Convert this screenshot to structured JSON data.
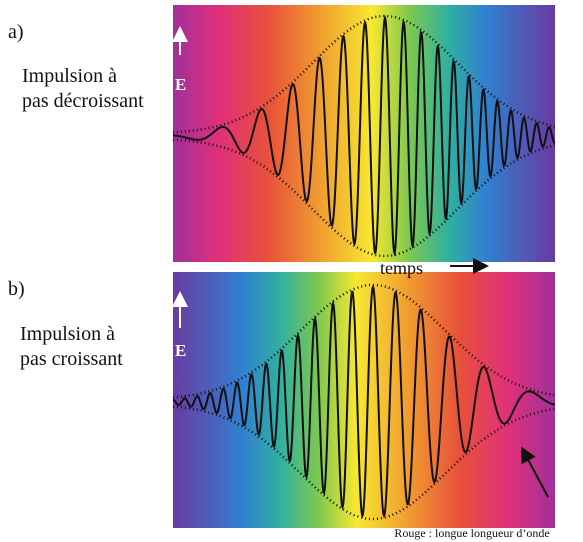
{
  "panels": [
    {
      "letter": "a)",
      "caption": [
        "Impulsion à",
        "pas décroissant"
      ],
      "axis_label": "E"
    },
    {
      "letter": "b)",
      "caption": [
        "Impulsion à",
        "pas croissant"
      ],
      "axis_label": "E"
    }
  ],
  "time_label": "temps",
  "annotation": "Rouge : longue longueur d’onde"
}
